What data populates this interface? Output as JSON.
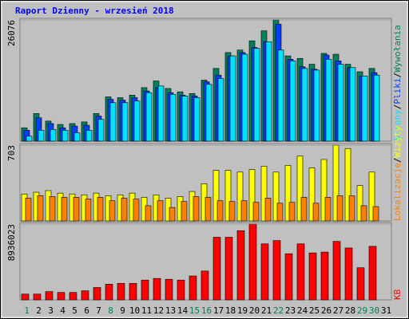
{
  "chart_data": [
    {
      "type": "bar",
      "title": "Raport Dzienny -  wrzesień 2018",
      "legend_separator": "/",
      "ylim": [
        0,
        26076
      ],
      "yticks": [
        26076
      ],
      "series": [
        {
          "name": "Wywołania",
          "color": "#00805c",
          "values": [
            2877,
            5934,
            4315,
            3596,
            3776,
            4136,
            5934,
            9530,
            9350,
            9890,
            11508,
            12946,
            11328,
            10609,
            10249,
            13126,
            15643,
            19060,
            19599,
            21577,
            23735,
            26076,
            18340,
            17800,
            16542,
            18879,
            18699,
            16542,
            14923,
            15643,
            null
          ]
        },
        {
          "name": "Pliki",
          "color": "#0040ff",
          "values": [
            2337,
            5035,
            3776,
            2877,
            3237,
            3416,
            5394,
            8990,
            8811,
            9350,
            10788,
            11508,
            10429,
            9890,
            9710,
            12766,
            14205,
            18340,
            19060,
            20138,
            21397,
            25173,
            17620,
            16002,
            15463,
            18519,
            17261,
            15822,
            14024,
            14744,
            null
          ]
        },
        {
          "name": "Strony",
          "color": "#00e0ff",
          "values": [
            1079,
            2337,
            2517,
            2337,
            1798,
            2337,
            4675,
            8271,
            8271,
            8630,
            10428,
            11867,
            10069,
            9709,
            9350,
            12226,
            13485,
            18340,
            18699,
            19958,
            21396,
            19598,
            17261,
            15643,
            15283,
            17620,
            16542,
            15822,
            14024,
            14204,
            null
          ]
        }
      ]
    },
    {
      "type": "bar",
      "ylim": [
        0,
        703
      ],
      "yticks": [
        703
      ],
      "series": [
        {
          "name": "Wizyty",
          "color": "#ffff00",
          "values": [
            250,
            266,
            281,
            258,
            250,
            242,
            258,
            234,
            242,
            258,
            219,
            242,
            211,
            226,
            273,
            344,
            469,
            469,
            453,
            476,
            508,
            453,
            515,
            601,
            492,
            570,
            703,
            672,
            328,
            453,
            null
          ]
        },
        {
          "name": "Lokalizacje",
          "color": "#ff8000",
          "values": [
            211,
            234,
            226,
            219,
            219,
            203,
            219,
            187,
            211,
            203,
            141,
            187,
            125,
            180,
            226,
            219,
            187,
            180,
            187,
            172,
            211,
            164,
            172,
            219,
            164,
            219,
            234,
            234,
            141,
            133,
            null
          ]
        }
      ]
    },
    {
      "type": "bar",
      "ylim": [
        0,
        8936023
      ],
      "yticks": [
        8936023
      ],
      "categories": [
        "1",
        "2",
        "3",
        "4",
        "5",
        "6",
        "7",
        "8",
        "9",
        "10",
        "11",
        "12",
        "13",
        "14",
        "15",
        "16",
        "17",
        "18",
        "19",
        "20",
        "21",
        "22",
        "23",
        "24",
        "25",
        "26",
        "27",
        "28",
        "29",
        "30",
        "31"
      ],
      "category_colors": [
        "#00805c",
        "#000000",
        "#000000",
        "#000000",
        "#000000",
        "#000000",
        "#000000",
        "#00805c",
        "#000000",
        "#000000",
        "#000000",
        "#000000",
        "#000000",
        "#000000",
        "#00805c",
        "#00805c",
        "#000000",
        "#000000",
        "#000000",
        "#000000",
        "#000000",
        "#00805c",
        "#000000",
        "#000000",
        "#000000",
        "#000000",
        "#000000",
        "#000000",
        "#00805c",
        "#00805c",
        "#000000"
      ],
      "series": [
        {
          "name": "KB",
          "color": "#ff0000",
          "values": [
            679917,
            679917,
            971310,
            874179,
            874179,
            1068441,
            1456965,
            1845489,
            1942620,
            1942620,
            2331144,
            2525406,
            2428275,
            2331144,
            2816799,
            3399585,
            7381956,
            7381956,
            8159004,
            8936023,
            6604908,
            6993432,
            5439336,
            6604908,
            5536467,
            5633598,
            6896301,
            6119253,
            3788109,
            6313515,
            null
          ]
        }
      ]
    }
  ]
}
